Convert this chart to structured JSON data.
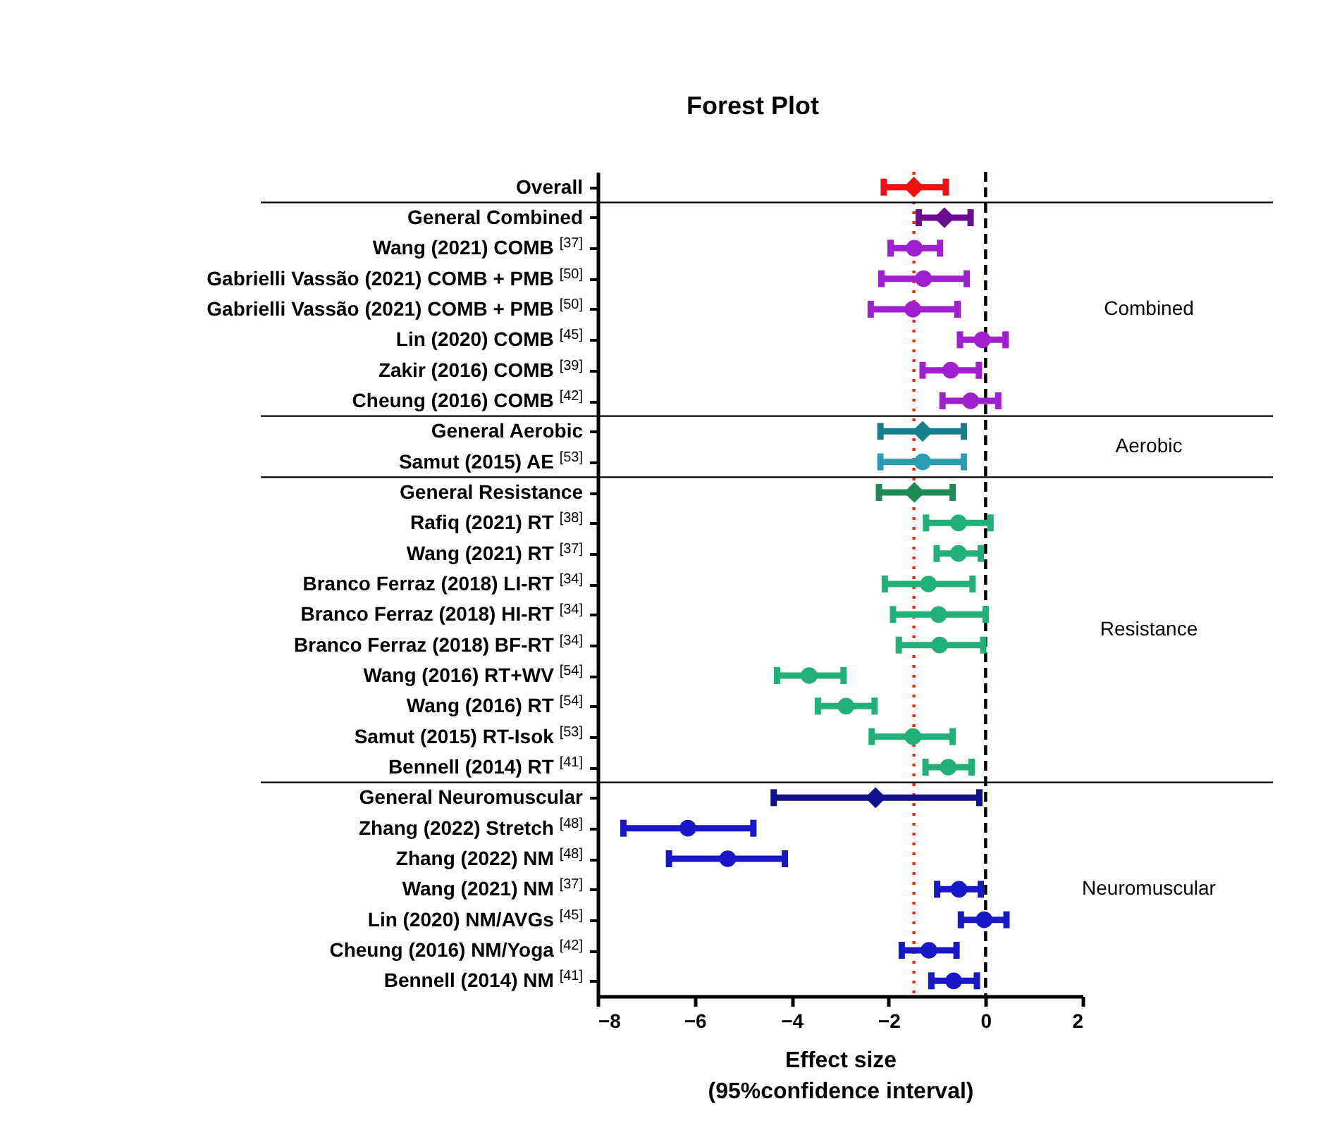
{
  "chart_data": {
    "type": "scatter",
    "title": "Forest Plot",
    "xlabel": "Effect size\n(95%confidence interval)",
    "orientation": "horizontal",
    "categories": [
      "Overall",
      "General Combined",
      "Wang (2021) COMB $^{[37]}$",
      "Gabrielli Vassão (2021) COMB + PMB $^{[50]}$",
      "Gabrielli Vassão (2021) COMB + PMB $^{[50]}$",
      "Lin (2020) COMB $^{[45]}$",
      "Zakir (2016) COMB $^{[39]}$",
      "Cheung (2016) COMB $^{[42]}$",
      "General Aerobic",
      "Samut (2015) AE $^{[53]}$",
      "General Resistance",
      "Rafiq (2021) RT $^{[38]}$",
      "Wang (2021) RT $^{[37]}$",
      "Branco Ferraz (2018) LI-RT $^{[34]}$",
      "Branco Ferraz (2018) HI-RT $^{[34]}$",
      "Branco Ferraz (2018) BF-RT $^{[34]}$",
      "Wang (2016) RT+WV $^{[54]}$",
      "Wang (2016) RT $^{[54]}$",
      "Samut (2015) RT-Isok $^{[53]}$",
      "Bennell (2014) RT $^{[41]}$",
      "General Neuromuscular",
      "Zhang (2022) Stretch $^{[48]}$",
      "Zhang (2022) NM $^{[48]}$",
      "Wang (2021) NM $^{[37]}$",
      "Lin (2020) NM/AVGs $^{[45]}$",
      "Cheung (2016) NM/Yoga $^{[42]}$",
      "Bennell (2014) NM $^{[41]}$"
    ],
    "xlim": [
      -8,
      2
    ],
    "xticks": [
      -8,
      -6,
      -4,
      -2,
      0,
      2
    ],
    "ref_lines": [
      {
        "axis": "x",
        "value": 0,
        "color": "#000000",
        "line_style": "dashed"
      },
      {
        "axis": "x",
        "value": -1.48,
        "color": "#e03020",
        "line_style": "dotted"
      }
    ],
    "series": [
      {
        "color": "#ee1111",
        "marker": "diamond",
        "values": [
          -1.48,
          null,
          null,
          null,
          null,
          null,
          null,
          null,
          null,
          null,
          null,
          null,
          null,
          null,
          null,
          null,
          null,
          null,
          null,
          null,
          null,
          null,
          null,
          null,
          null,
          null,
          null
        ],
        "errors": [
          [
            -2.1,
            -0.82
          ],
          null,
          null,
          null,
          null,
          null,
          null,
          null,
          null,
          null,
          null,
          null,
          null,
          null,
          null,
          null,
          null,
          null,
          null,
          null,
          null,
          null,
          null,
          null,
          null,
          null,
          null
        ]
      },
      {
        "color": "#6a0d91",
        "marker": "diamond",
        "values": [
          null,
          -0.85,
          null,
          null,
          null,
          null,
          null,
          null,
          null,
          null,
          null,
          null,
          null,
          null,
          null,
          null,
          null,
          null,
          null,
          null,
          null,
          null,
          null,
          null,
          null,
          null,
          null
        ],
        "errors": [
          null,
          [
            -1.38,
            -0.31
          ],
          null,
          null,
          null,
          null,
          null,
          null,
          null,
          null,
          null,
          null,
          null,
          null,
          null,
          null,
          null,
          null,
          null,
          null,
          null,
          null,
          null,
          null,
          null,
          null,
          null
        ]
      },
      {
        "name": "Combined",
        "color": "#a020d0",
        "marker": "circle",
        "values": [
          null,
          null,
          -1.47,
          -1.28,
          -1.5,
          -0.07,
          -0.72,
          -0.31,
          null,
          null,
          null,
          null,
          null,
          null,
          null,
          null,
          null,
          null,
          null,
          null,
          null,
          null,
          null,
          null,
          null,
          null,
          null
        ],
        "errors": [
          null,
          null,
          [
            -1.96,
            -0.94
          ],
          [
            -2.15,
            -0.39
          ],
          [
            -2.37,
            -0.58
          ],
          [
            -0.53,
            0.41
          ],
          [
            -1.3,
            -0.14
          ],
          [
            -0.89,
            0.26
          ],
          null,
          null,
          null,
          null,
          null,
          null,
          null,
          null,
          null,
          null,
          null,
          null,
          null,
          null,
          null,
          null,
          null,
          null,
          null
        ]
      },
      {
        "color": "#16808f",
        "marker": "diamond",
        "values": [
          null,
          null,
          null,
          null,
          null,
          null,
          null,
          null,
          -1.3,
          null,
          null,
          null,
          null,
          null,
          null,
          null,
          null,
          null,
          null,
          null,
          null,
          null,
          null,
          null,
          null,
          null,
          null
        ],
        "errors": [
          null,
          null,
          null,
          null,
          null,
          null,
          null,
          null,
          [
            -2.17,
            -0.45
          ],
          null,
          null,
          null,
          null,
          null,
          null,
          null,
          null,
          null,
          null,
          null,
          null,
          null,
          null,
          null,
          null,
          null,
          null
        ]
      },
      {
        "name": "Aerobic",
        "color": "#2a9db0",
        "marker": "circle",
        "values": [
          null,
          null,
          null,
          null,
          null,
          null,
          null,
          null,
          null,
          -1.3,
          null,
          null,
          null,
          null,
          null,
          null,
          null,
          null,
          null,
          null,
          null,
          null,
          null,
          null,
          null,
          null,
          null
        ],
        "errors": [
          null,
          null,
          null,
          null,
          null,
          null,
          null,
          null,
          null,
          [
            -2.17,
            -0.45
          ],
          null,
          null,
          null,
          null,
          null,
          null,
          null,
          null,
          null,
          null,
          null,
          null,
          null,
          null,
          null,
          null,
          null
        ]
      },
      {
        "color": "#1e8a5a",
        "marker": "diamond",
        "values": [
          null,
          null,
          null,
          null,
          null,
          null,
          null,
          null,
          null,
          null,
          -1.47,
          null,
          null,
          null,
          null,
          null,
          null,
          null,
          null,
          null,
          null,
          null,
          null,
          null,
          null,
          null,
          null
        ],
        "errors": [
          null,
          null,
          null,
          null,
          null,
          null,
          null,
          null,
          null,
          null,
          [
            -2.2,
            -0.68
          ],
          null,
          null,
          null,
          null,
          null,
          null,
          null,
          null,
          null,
          null,
          null,
          null,
          null,
          null,
          null,
          null
        ]
      },
      {
        "name": "Resistance",
        "color": "#22b07a",
        "marker": "circle",
        "values": [
          null,
          null,
          null,
          null,
          null,
          null,
          null,
          null,
          null,
          null,
          null,
          -0.56,
          -0.56,
          -1.18,
          -0.97,
          -0.95,
          -3.64,
          -2.88,
          -1.5,
          -0.77,
          null,
          null,
          null,
          null,
          null,
          null,
          null
        ],
        "errors": [
          null,
          null,
          null,
          null,
          null,
          null,
          null,
          null,
          null,
          null,
          null,
          [
            -1.23,
            0.1
          ],
          [
            -1.01,
            -0.1
          ],
          [
            -2.08,
            -0.27
          ],
          [
            -1.91,
            0
          ],
          [
            -1.79,
            -0.05
          ],
          [
            -4.3,
            -2.93
          ],
          [
            -3.46,
            -2.29
          ],
          [
            -2.35,
            -0.68
          ],
          [
            -1.24,
            -0.29
          ],
          null,
          null,
          null,
          null,
          null,
          null,
          null
        ]
      },
      {
        "color": "#10108f",
        "marker": "diamond",
        "values": [
          null,
          null,
          null,
          null,
          null,
          null,
          null,
          null,
          null,
          null,
          null,
          null,
          null,
          null,
          null,
          null,
          null,
          null,
          null,
          null,
          -2.27,
          null,
          null,
          null,
          null,
          null,
          null
        ],
        "errors": [
          null,
          null,
          null,
          null,
          null,
          null,
          null,
          null,
          null,
          null,
          null,
          null,
          null,
          null,
          null,
          null,
          null,
          null,
          null,
          null,
          [
            -4.37,
            -0.13
          ],
          null,
          null,
          null,
          null,
          null,
          null
        ]
      },
      {
        "name": "Neuromuscular",
        "color": "#1818c8",
        "marker": "circle",
        "values": [
          null,
          null,
          null,
          null,
          null,
          null,
          null,
          null,
          null,
          null,
          null,
          null,
          null,
          null,
          null,
          null,
          null,
          null,
          null,
          null,
          null,
          -6.14,
          -5.32,
          -0.55,
          -0.03,
          -1.17,
          -0.66
        ],
        "errors": [
          null,
          null,
          null,
          null,
          null,
          null,
          null,
          null,
          null,
          null,
          null,
          null,
          null,
          null,
          null,
          null,
          null,
          null,
          null,
          null,
          null,
          [
            -7.47,
            -4.79
          ],
          [
            -6.53,
            -4.14
          ],
          [
            -1.0,
            -0.1
          ],
          [
            -0.51,
            0.43
          ],
          [
            -1.73,
            -0.6
          ],
          [
            -1.12,
            -0.18
          ]
        ]
      }
    ]
  }
}
